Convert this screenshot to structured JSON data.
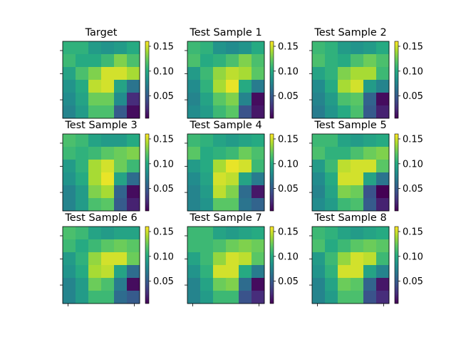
{
  "chart_data": {
    "type": "heatmap",
    "colormap": "viridis",
    "colorbar_range": [
      0.005,
      0.16
    ],
    "colorbar_ticks": [
      "0.05",
      "0.10",
      "0.15"
    ],
    "panels": [
      {
        "title": "Target",
        "values": [
          [
            0.105,
            0.105,
            0.09,
            0.085,
            0.09,
            0.1
          ],
          [
            0.11,
            0.1,
            0.1,
            0.11,
            0.13,
            0.115
          ],
          [
            0.095,
            0.115,
            0.13,
            0.15,
            0.15,
            0.14
          ],
          [
            0.085,
            0.1,
            0.145,
            0.15,
            0.095,
            0.065
          ],
          [
            0.08,
            0.095,
            0.125,
            0.125,
            0.08,
            0.025
          ],
          [
            0.075,
            0.09,
            0.115,
            0.115,
            0.05,
            0.01
          ]
        ]
      },
      {
        "title": "Test Sample 1",
        "values": [
          [
            0.11,
            0.105,
            0.085,
            0.08,
            0.085,
            0.1
          ],
          [
            0.115,
            0.1,
            0.105,
            0.115,
            0.13,
            0.115
          ],
          [
            0.09,
            0.11,
            0.135,
            0.145,
            0.14,
            0.12
          ],
          [
            0.08,
            0.105,
            0.14,
            0.155,
            0.1,
            0.07
          ],
          [
            0.075,
            0.095,
            0.12,
            0.13,
            0.075,
            0.01
          ],
          [
            0.08,
            0.09,
            0.11,
            0.12,
            0.045,
            0.015
          ]
        ]
      },
      {
        "title": "Test Sample 2",
        "values": [
          [
            0.11,
            0.105,
            0.09,
            0.085,
            0.09,
            0.1
          ],
          [
            0.115,
            0.105,
            0.1,
            0.115,
            0.125,
            0.115
          ],
          [
            0.095,
            0.105,
            0.13,
            0.14,
            0.14,
            0.11
          ],
          [
            0.08,
            0.1,
            0.14,
            0.15,
            0.09,
            0.075
          ],
          [
            0.075,
            0.09,
            0.115,
            0.12,
            0.055,
            0.01
          ],
          [
            0.07,
            0.085,
            0.1,
            0.115,
            0.05,
            0.02
          ]
        ]
      },
      {
        "title": "Test Sample 3",
        "values": [
          [
            0.115,
            0.11,
            0.095,
            0.09,
            0.09,
            0.1
          ],
          [
            0.11,
            0.105,
            0.11,
            0.12,
            0.125,
            0.13
          ],
          [
            0.09,
            0.105,
            0.14,
            0.15,
            0.125,
            0.11
          ],
          [
            0.085,
            0.1,
            0.14,
            0.155,
            0.095,
            0.06
          ],
          [
            0.075,
            0.09,
            0.13,
            0.14,
            0.055,
            0.01
          ],
          [
            0.075,
            0.09,
            0.115,
            0.12,
            0.05,
            0.02
          ]
        ]
      },
      {
        "title": "Test Sample 4",
        "values": [
          [
            0.11,
            0.105,
            0.095,
            0.09,
            0.095,
            0.1
          ],
          [
            0.12,
            0.1,
            0.105,
            0.11,
            0.125,
            0.115
          ],
          [
            0.09,
            0.1,
            0.14,
            0.155,
            0.15,
            0.11
          ],
          [
            0.08,
            0.095,
            0.15,
            0.145,
            0.095,
            0.07
          ],
          [
            0.075,
            0.09,
            0.145,
            0.13,
            0.06,
            0.015
          ],
          [
            0.075,
            0.085,
            0.12,
            0.12,
            0.065,
            0.055
          ]
        ]
      },
      {
        "title": "Test Sample 5",
        "values": [
          [
            0.11,
            0.11,
            0.095,
            0.09,
            0.095,
            0.1
          ],
          [
            0.115,
            0.105,
            0.105,
            0.115,
            0.125,
            0.13
          ],
          [
            0.09,
            0.11,
            0.145,
            0.15,
            0.15,
            0.12
          ],
          [
            0.08,
            0.1,
            0.15,
            0.15,
            0.095,
            0.065
          ],
          [
            0.075,
            0.095,
            0.13,
            0.125,
            0.045,
            0.005
          ],
          [
            0.08,
            0.09,
            0.11,
            0.115,
            0.05,
            0.02
          ]
        ]
      },
      {
        "title": "Test Sample 6",
        "values": [
          [
            0.115,
            0.11,
            0.095,
            0.09,
            0.095,
            0.095
          ],
          [
            0.11,
            0.1,
            0.11,
            0.12,
            0.125,
            0.12
          ],
          [
            0.09,
            0.105,
            0.135,
            0.15,
            0.15,
            0.125
          ],
          [
            0.085,
            0.1,
            0.14,
            0.145,
            0.095,
            0.06
          ],
          [
            0.075,
            0.09,
            0.125,
            0.115,
            0.07,
            0.01
          ],
          [
            0.075,
            0.09,
            0.11,
            0.11,
            0.06,
            0.05
          ]
        ]
      },
      {
        "title": "Test Sample 7",
        "values": [
          [
            0.11,
            0.11,
            0.095,
            0.09,
            0.095,
            0.1
          ],
          [
            0.11,
            0.11,
            0.115,
            0.125,
            0.13,
            0.125
          ],
          [
            0.095,
            0.11,
            0.135,
            0.15,
            0.145,
            0.12
          ],
          [
            0.085,
            0.105,
            0.15,
            0.15,
            0.1,
            0.07
          ],
          [
            0.075,
            0.095,
            0.125,
            0.13,
            0.06,
            0.01
          ],
          [
            0.075,
            0.09,
            0.11,
            0.11,
            0.045,
            0.025
          ]
        ]
      },
      {
        "title": "Test Sample 8",
        "values": [
          [
            0.11,
            0.105,
            0.095,
            0.09,
            0.095,
            0.1
          ],
          [
            0.115,
            0.1,
            0.11,
            0.12,
            0.125,
            0.12
          ],
          [
            0.09,
            0.11,
            0.135,
            0.15,
            0.145,
            0.11
          ],
          [
            0.085,
            0.105,
            0.15,
            0.15,
            0.095,
            0.075
          ],
          [
            0.075,
            0.095,
            0.125,
            0.12,
            0.055,
            0.015
          ],
          [
            0.075,
            0.09,
            0.115,
            0.115,
            0.045,
            0.025
          ]
        ]
      }
    ]
  }
}
